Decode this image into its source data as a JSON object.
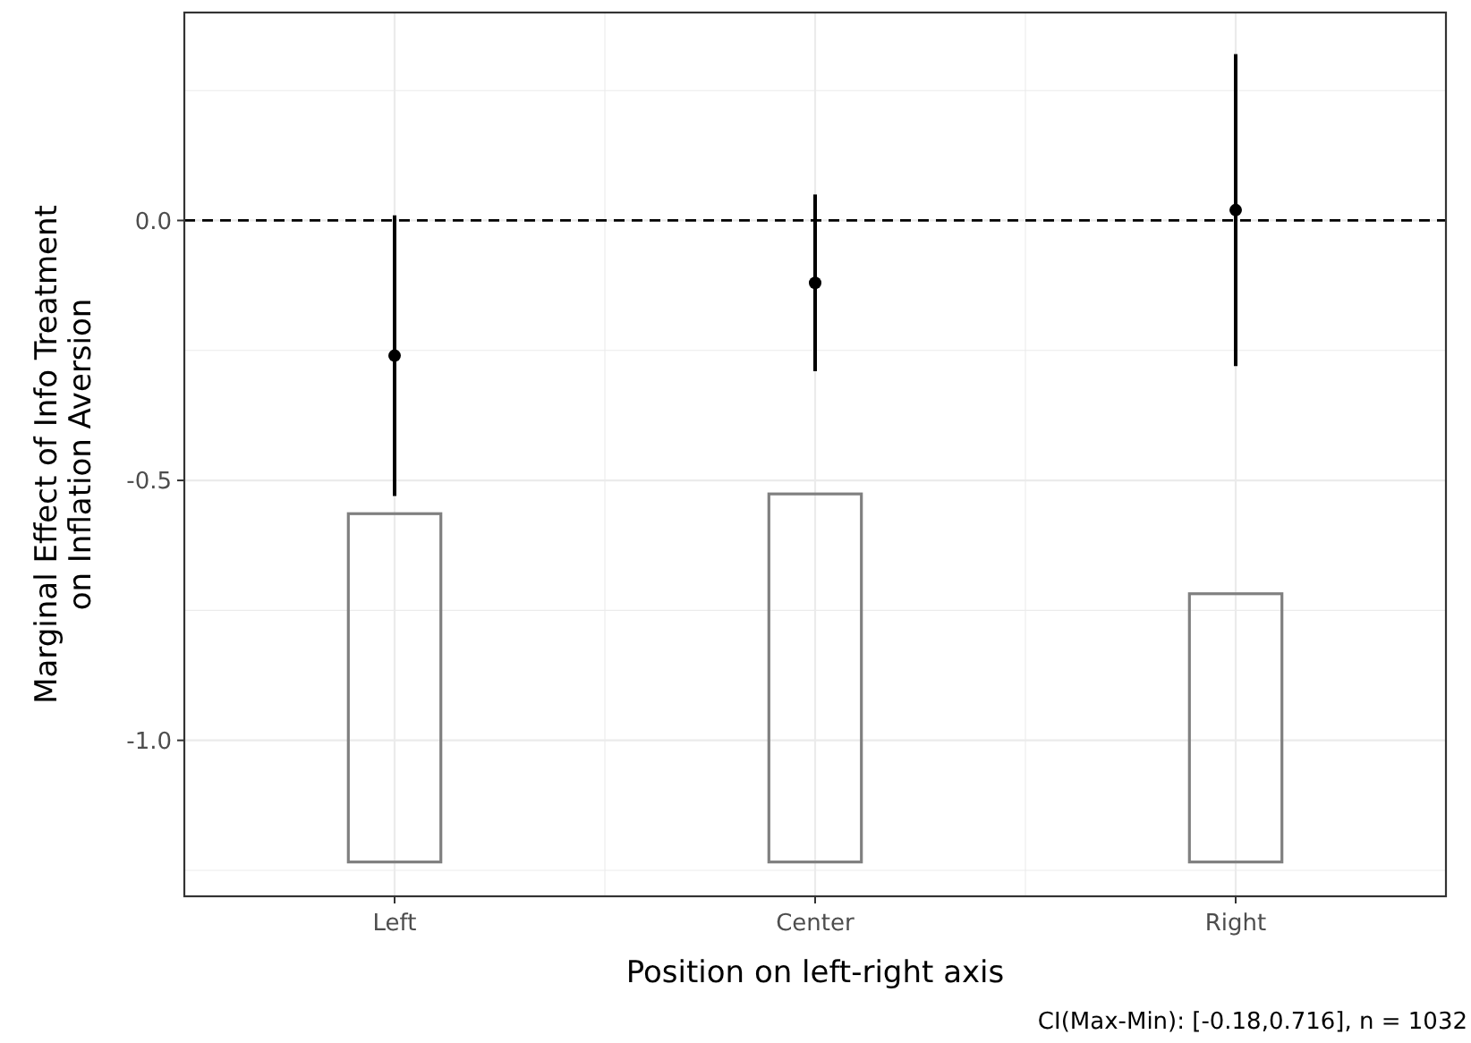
{
  "chart_data": {
    "type": "scatter",
    "xlabel": "Position on left-right axis",
    "ylabel": "Marginal Effect of Info Treatment\non Inflation Aversion",
    "categories": [
      "Left",
      "Center",
      "Right"
    ],
    "ylim": [
      -1.3,
      0.4
    ],
    "yticks": [
      {
        "value": -1,
        "label": "-1.0"
      },
      {
        "value": -0.5,
        "label": "-0.5"
      },
      {
        "value": 0,
        "label": "0.0"
      }
    ],
    "grid": true,
    "annotations": [
      "CI(Max-Min): [-0.18,0.716], n = 1032"
    ],
    "ref_lines": [
      {
        "axis": "y",
        "value": 0,
        "line_style": "dashed",
        "color": "#000000"
      }
    ],
    "series": [
      {
        "type": "bar",
        "color": "#808080",
        "base": [
          -1.234,
          -1.234,
          -1.234
        ],
        "values": [
          0.67,
          0.708,
          0.516
        ]
      },
      {
        "color": "#000000",
        "marker": "circle",
        "x": [
          "Left",
          "Center",
          "Right"
        ],
        "values": [
          -0.26,
          -0.12,
          0.02
        ],
        "errors": [
          [
            -0.53,
            0.01
          ],
          [
            -0.29,
            0.05
          ],
          [
            -0.28,
            0.32
          ]
        ]
      }
    ]
  }
}
